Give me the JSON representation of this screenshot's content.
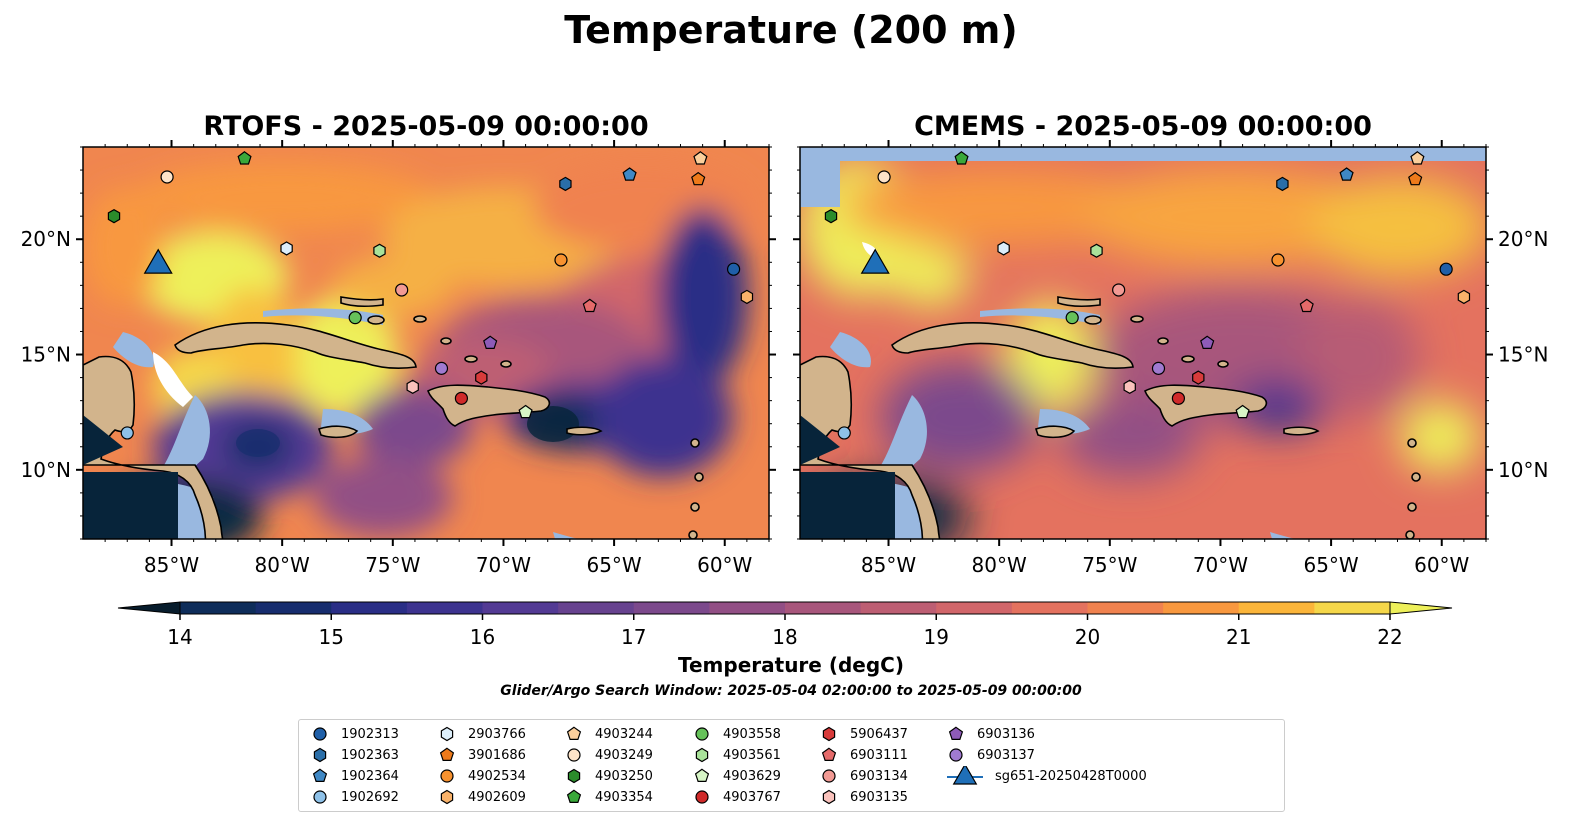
{
  "title": "Temperature (200 m)",
  "panels": [
    {
      "title": "RTOFS - 2025-05-09 00:00:00"
    },
    {
      "title": "CMEMS - 2025-05-09 00:00:00"
    }
  ],
  "map": {
    "lon_range": [
      -89,
      -58
    ],
    "lat_range": [
      7,
      24
    ],
    "lon_ticks": [
      "85°W",
      "80°W",
      "75°W",
      "70°W",
      "65°W",
      "60°W"
    ],
    "lat_ticks": [
      "20°N",
      "15°N",
      "10°N"
    ],
    "land_color": "#d2b48c",
    "shelf_color": "#99b8e0",
    "deep_color": "#07243a"
  },
  "colorbar": {
    "title": "Temperature (degC)",
    "min": 14,
    "max": 22,
    "step": 0.5,
    "ticks": [
      "14",
      "15",
      "16",
      "17",
      "18",
      "19",
      "20",
      "21",
      "22"
    ],
    "colors": [
      "#0b2a42",
      "#0e2d5a",
      "#172d6e",
      "#2a2e86",
      "#3d338f",
      "#533a94",
      "#67428f",
      "#7c498c",
      "#924f85",
      "#a8567c",
      "#bd5e73",
      "#d1666a",
      "#e4725f",
      "#f0824f",
      "#f8983f",
      "#fbb53a",
      "#f5d74a",
      "#eef05a"
    ]
  },
  "search_window": "Glider/Argo Search Window: 2025-05-04 02:00:00 to 2025-05-09 00:00:00",
  "legend": [
    {
      "label": "1902313",
      "marker": "circle",
      "color": "#1f5fa8"
    },
    {
      "label": "1902363",
      "marker": "hexagon",
      "color": "#2a6ea8"
    },
    {
      "label": "1902364",
      "marker": "pentagon",
      "color": "#3f88c5"
    },
    {
      "label": "1902692",
      "marker": "circle",
      "color": "#8ec1e8"
    },
    {
      "label": "2903766",
      "marker": "hexagon",
      "color": "#dceefa"
    },
    {
      "label": "3901686",
      "marker": "pentagon",
      "color": "#ee7a1a"
    },
    {
      "label": "4902534",
      "marker": "circle",
      "color": "#f7922f"
    },
    {
      "label": "4902609",
      "marker": "hexagon",
      "color": "#f9b26a"
    },
    {
      "label": "4903244",
      "marker": "pentagon",
      "color": "#fbcf9c"
    },
    {
      "label": "4903249",
      "marker": "circle",
      "color": "#fde3c8"
    },
    {
      "label": "4903250",
      "marker": "hexagon",
      "color": "#2b8c2b"
    },
    {
      "label": "4903354",
      "marker": "pentagon",
      "color": "#3aa83a"
    },
    {
      "label": "4903558",
      "marker": "circle",
      "color": "#66c25a"
    },
    {
      "label": "4903561",
      "marker": "hexagon",
      "color": "#a9e29a"
    },
    {
      "label": "4903629",
      "marker": "pentagon",
      "color": "#d7f5c6"
    },
    {
      "label": "4903767",
      "marker": "circle",
      "color": "#d02a2a"
    },
    {
      "label": "5906437",
      "marker": "hexagon",
      "color": "#d83b3b"
    },
    {
      "label": "6903111",
      "marker": "pentagon",
      "color": "#e56a6a"
    },
    {
      "label": "6903134",
      "marker": "circle",
      "color": "#f29a94"
    },
    {
      "label": "6903135",
      "marker": "hexagon",
      "color": "#fac2bc"
    },
    {
      "label": "6903136",
      "marker": "pentagon",
      "color": "#8e5bb8"
    },
    {
      "label": "6903137",
      "marker": "circle",
      "color": "#a07ad0"
    },
    {
      "label": "sg651-20250428T0000",
      "marker": "triangle",
      "color": "#1f6fb8"
    }
  ],
  "floats": [
    {
      "id": "1902313",
      "lon": -59.6,
      "lat": 18.7,
      "cmems_lon": -59.8
    },
    {
      "id": "1902363",
      "lon": -67.2,
      "lat": 22.4
    },
    {
      "id": "1902364",
      "lon": -64.3,
      "lat": 22.8
    },
    {
      "id": "1902692",
      "lon": -87.0,
      "lat": 11.6
    },
    {
      "id": "2903766",
      "lon": -79.8,
      "lat": 19.6
    },
    {
      "id": "3901686",
      "lon": -61.2,
      "lat": 22.6
    },
    {
      "id": "4902534",
      "lon": -67.4,
      "lat": 19.1
    },
    {
      "id": "4902609",
      "lon": -59.0,
      "lat": 17.5
    },
    {
      "id": "4903244",
      "lon": -61.1,
      "lat": 23.5
    },
    {
      "id": "4903249",
      "lon": -85.2,
      "lat": 22.7
    },
    {
      "id": "4903250",
      "lon": -87.6,
      "lat": 21.0
    },
    {
      "id": "4903354",
      "lon": -81.7,
      "lat": 23.5
    },
    {
      "id": "4903558",
      "lon": -76.7,
      "lat": 16.6
    },
    {
      "id": "4903561",
      "lon": -75.6,
      "lat": 19.5
    },
    {
      "id": "4903629",
      "lon": -69.0,
      "lat": 12.5
    },
    {
      "id": "4903767",
      "lon": -71.9,
      "lat": 13.1
    },
    {
      "id": "5906437",
      "lon": -71.0,
      "lat": 14.0
    },
    {
      "id": "6903111",
      "lon": -66.1,
      "lat": 17.1
    },
    {
      "id": "6903134",
      "lon": -74.6,
      "lat": 17.8
    },
    {
      "id": "6903135",
      "lon": -74.1,
      "lat": 13.6
    },
    {
      "id": "6903136",
      "lon": -70.6,
      "lat": 15.5
    },
    {
      "id": "6903137",
      "lon": -72.8,
      "lat": 14.4
    }
  ],
  "glider": {
    "id": "sg651-20250428T0000",
    "lon": -85.6,
    "lat": 19.0
  }
}
